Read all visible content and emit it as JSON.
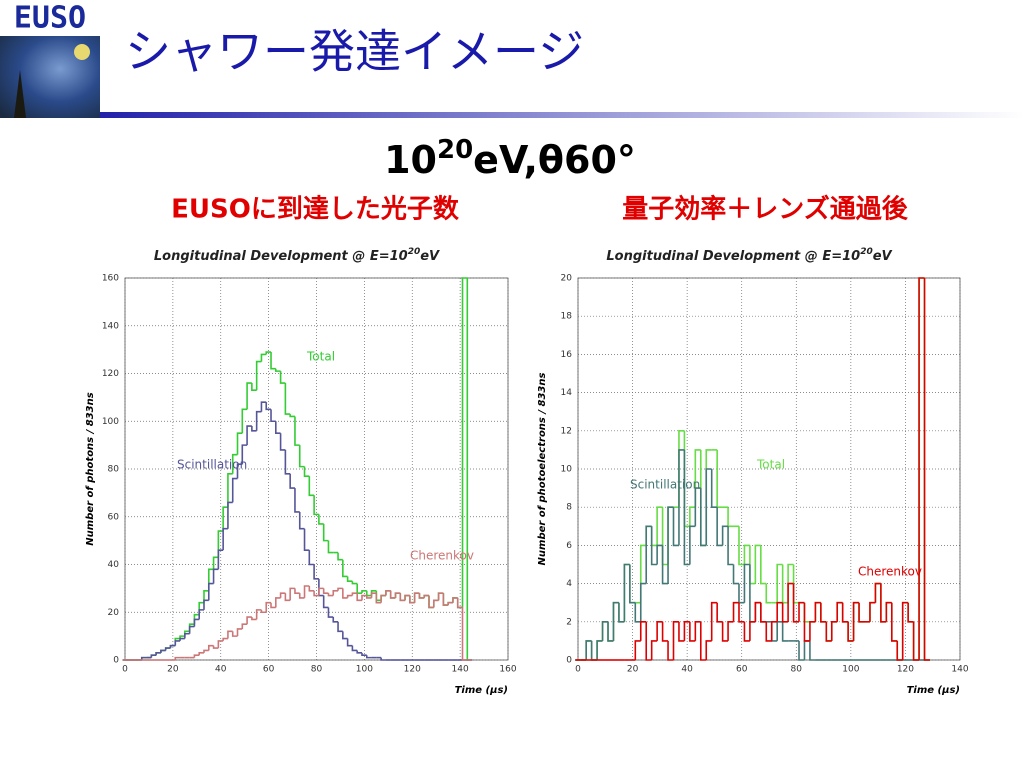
{
  "header": {
    "logo": "EUSO",
    "title": "シャワー発達イメージ"
  },
  "subtitle": {
    "base": "10",
    "sup": "20",
    "rest": "eV,θ60°"
  },
  "captions": [
    "EUSOに到達した光子数",
    "量子効率＋レンズ通過後"
  ],
  "chart_data": [
    {
      "type": "line",
      "drawstyle": "steps-mid",
      "title": {
        "text": "Longitudinal Development @ E=10",
        "sup": "20",
        "end": "eV"
      },
      "y_label": "Number of photons / 833ns",
      "x_label": "Time (μs)",
      "xlim": [
        0,
        160
      ],
      "xticks": [
        0,
        20,
        40,
        60,
        80,
        100,
        120,
        140,
        160
      ],
      "ylim": [
        0,
        160
      ],
      "yticks": [
        0,
        20,
        40,
        60,
        80,
        100,
        120,
        140,
        160
      ],
      "grid": true,
      "x": [
        0,
        2,
        4,
        6,
        8,
        10,
        12,
        14,
        16,
        18,
        20,
        22,
        24,
        26,
        28,
        30,
        32,
        34,
        36,
        38,
        40,
        42,
        44,
        46,
        48,
        50,
        52,
        54,
        56,
        58,
        60,
        62,
        64,
        66,
        68,
        70,
        72,
        74,
        76,
        78,
        80,
        82,
        84,
        86,
        88,
        90,
        92,
        94,
        96,
        98,
        100,
        102,
        104,
        106,
        108,
        110,
        112,
        114,
        116,
        118,
        120,
        122,
        124,
        126,
        128,
        130,
        132,
        134,
        136,
        138,
        140,
        142,
        144
      ],
      "series": [
        {
          "name": "Total",
          "color": "#33cc33",
          "values": [
            0,
            0,
            0,
            0,
            1,
            1,
            2,
            3,
            4,
            5,
            6,
            9,
            10,
            12,
            15,
            19,
            24,
            29,
            38,
            43,
            54,
            64,
            78,
            86,
            95,
            105,
            116,
            113,
            125,
            128,
            129,
            122,
            121,
            116,
            103,
            102,
            90,
            81,
            77,
            69,
            61,
            57,
            50,
            45,
            45,
            42,
            35,
            33,
            32,
            28,
            29,
            27,
            29,
            25,
            27,
            29,
            26,
            28,
            25,
            27,
            24,
            28,
            26,
            27,
            22,
            25,
            28,
            23,
            24,
            26,
            22,
            160,
            0
          ]
        },
        {
          "name": "Scintillation",
          "color": "#555599",
          "values": [
            0,
            0,
            0,
            0,
            1,
            1,
            2,
            3,
            4,
            5,
            6,
            8,
            9,
            11,
            14,
            17,
            21,
            25,
            32,
            38,
            46,
            55,
            66,
            76,
            82,
            90,
            98,
            96,
            104,
            108,
            105,
            100,
            95,
            88,
            78,
            72,
            62,
            55,
            46,
            40,
            34,
            27,
            22,
            18,
            16,
            12,
            9,
            6,
            4,
            3,
            2,
            1,
            1,
            1,
            0,
            0,
            0,
            0,
            0,
            0,
            0,
            0,
            0,
            0,
            0,
            0,
            0,
            0,
            0,
            0,
            0,
            0,
            0
          ]
        },
        {
          "name": "Cherenkov",
          "color": "#cc7777",
          "values": [
            0,
            0,
            0,
            0,
            0,
            0,
            0,
            0,
            0,
            0,
            0,
            1,
            1,
            1,
            1,
            2,
            3,
            4,
            6,
            5,
            8,
            9,
            12,
            10,
            13,
            15,
            18,
            17,
            21,
            20,
            24,
            22,
            26,
            28,
            25,
            30,
            28,
            26,
            31,
            29,
            27,
            30,
            28,
            27,
            29,
            30,
            26,
            27,
            28,
            25,
            27,
            26,
            28,
            24,
            27,
            29,
            26,
            28,
            25,
            27,
            24,
            28,
            26,
            27,
            22,
            25,
            28,
            23,
            24,
            26,
            22,
            0,
            0
          ]
        }
      ]
    },
    {
      "type": "line",
      "drawstyle": "steps-mid",
      "title": {
        "text": "Longitudinal Development @ E=10",
        "sup": "20",
        "end": "eV"
      },
      "y_label": "Number of photoelectrons / 833ns",
      "x_label": "Time (μs)",
      "xlim": [
        0,
        140
      ],
      "xticks": [
        0,
        20,
        40,
        60,
        80,
        100,
        120,
        140
      ],
      "ylim": [
        0,
        20
      ],
      "yticks": [
        0,
        2,
        4,
        6,
        8,
        10,
        12,
        14,
        16,
        18,
        20
      ],
      "grid": true,
      "x": [
        0,
        2,
        4,
        6,
        8,
        10,
        12,
        14,
        16,
        18,
        20,
        22,
        24,
        26,
        28,
        30,
        32,
        34,
        36,
        38,
        40,
        42,
        44,
        46,
        48,
        50,
        52,
        54,
        56,
        58,
        60,
        62,
        64,
        66,
        68,
        70,
        72,
        74,
        76,
        78,
        80,
        82,
        84,
        86,
        88,
        90,
        92,
        94,
        96,
        98,
        100,
        102,
        104,
        106,
        108,
        110,
        112,
        114,
        116,
        118,
        120,
        122,
        124,
        126,
        128
      ],
      "series": [
        {
          "name": "Total",
          "color": "#66dd44",
          "values": [
            0,
            0,
            1,
            0,
            1,
            2,
            1,
            3,
            2,
            5,
            3,
            3,
            6,
            7,
            6,
            8,
            5,
            8,
            8,
            12,
            7,
            8,
            11,
            6,
            11,
            11,
            8,
            8,
            7,
            7,
            5,
            6,
            4,
            6,
            4,
            3,
            3,
            5,
            3,
            5,
            3,
            3,
            2,
            2,
            3,
            2,
            1,
            2,
            3,
            2,
            1,
            3,
            2,
            2,
            3,
            4,
            2,
            3,
            1,
            0,
            3,
            2,
            0,
            20,
            0
          ]
        },
        {
          "name": "Scintillation",
          "color": "#447777",
          "values": [
            0,
            0,
            1,
            0,
            1,
            2,
            1,
            3,
            2,
            5,
            3,
            2,
            4,
            7,
            5,
            6,
            4,
            8,
            6,
            11,
            5,
            7,
            9,
            6,
            10,
            8,
            6,
            7,
            5,
            4,
            3,
            5,
            2,
            3,
            2,
            2,
            1,
            2,
            1,
            1,
            1,
            0,
            1,
            0,
            0,
            0,
            0,
            0,
            0,
            0,
            0,
            0,
            0,
            0,
            0,
            0,
            0,
            0,
            0,
            0,
            0,
            0,
            0,
            0,
            0
          ]
        },
        {
          "name": "Cherenkov",
          "color": "#dd0000",
          "values": [
            0,
            0,
            0,
            0,
            0,
            0,
            0,
            0,
            0,
            0,
            0,
            1,
            2,
            0,
            1,
            2,
            1,
            0,
            2,
            1,
            2,
            1,
            2,
            0,
            1,
            3,
            2,
            1,
            2,
            3,
            2,
            1,
            2,
            3,
            2,
            1,
            2,
            3,
            2,
            4,
            2,
            3,
            1,
            2,
            3,
            2,
            1,
            2,
            3,
            2,
            1,
            3,
            2,
            2,
            3,
            4,
            2,
            3,
            1,
            0,
            3,
            2,
            0,
            20,
            0
          ]
        }
      ]
    }
  ]
}
